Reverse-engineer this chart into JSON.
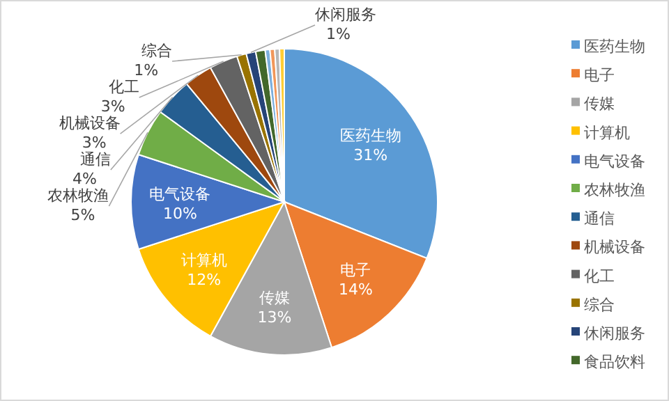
{
  "chart_data": {
    "type": "pie",
    "categories": [
      "医药生物",
      "电子",
      "传媒",
      "计算机",
      "电气设备",
      "农林牧渔",
      "通信",
      "机械设备",
      "化工",
      "综合",
      "休闲服务",
      "食品饮料",
      null,
      null,
      null,
      null
    ],
    "values": [
      31,
      14,
      13,
      12,
      10,
      5,
      4,
      3,
      3,
      1,
      1,
      1,
      0.5,
      0.5,
      0.5,
      0.5
    ],
    "colors": [
      "#5b9bd5",
      "#ed7d31",
      "#a5a5a5",
      "#ffc000",
      "#4472c4",
      "#70ad47",
      "#255e91",
      "#9e480e",
      "#636363",
      "#997300",
      "#264478",
      "#43682b",
      "#7cafdd",
      "#f1975a",
      "#b7b7b7",
      "#ffcd33"
    ],
    "value_labels": [
      "31%",
      "14%",
      "13%",
      "12%",
      "10%",
      "5%",
      "4%",
      "3%",
      "3%",
      "1%",
      "1%",
      null,
      null,
      null,
      null,
      null
    ],
    "legend": "right"
  }
}
